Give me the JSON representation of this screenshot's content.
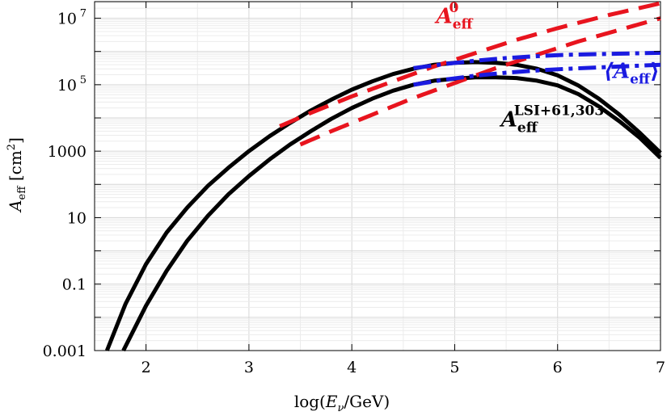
{
  "chart_data": {
    "type": "line",
    "xlabel": {
      "main": "log(",
      "var": "E",
      "sub": "ν",
      "rest": "/GeV)"
    },
    "ylabel": {
      "var": "A",
      "sub": "eff",
      "rest": "  [cm",
      "sup": "2",
      "close": "]"
    },
    "xlim": [
      1.5,
      7.0
    ],
    "ylim_log10": [
      -3,
      7.5
    ],
    "yscale": "log",
    "grid": true,
    "x_ticks": [
      {
        "value": 2,
        "label": "2"
      },
      {
        "value": 3,
        "label": "3"
      },
      {
        "value": 4,
        "label": "4"
      },
      {
        "value": 5,
        "label": "5"
      },
      {
        "value": 6,
        "label": "6"
      },
      {
        "value": 7,
        "label": "7"
      }
    ],
    "y_ticks": [
      {
        "log10": -3,
        "label": "0.001"
      },
      {
        "log10": -1,
        "label": "0.1"
      },
      {
        "log10": 1,
        "label": "10"
      },
      {
        "log10": 3,
        "label": "1000"
      },
      {
        "log10": 5,
        "label": "10",
        "sup": "5"
      },
      {
        "log10": 7,
        "label": "10",
        "sup": "7"
      }
    ],
    "series": [
      {
        "style": "dashed",
        "color": "#e8141e",
        "x": [
          3.3,
          3.6,
          4.0,
          4.4,
          4.8,
          5.2,
          5.6,
          6.0,
          6.5,
          7.0
        ],
        "y_log10": [
          3.75,
          4.15,
          4.65,
          5.1,
          5.55,
          5.95,
          6.35,
          6.7,
          7.1,
          7.45
        ]
      },
      {
        "style": "dashed",
        "color": "#e8141e",
        "x": [
          3.5,
          3.8,
          4.2,
          4.6,
          5.0,
          5.4,
          5.8,
          6.2,
          6.6,
          7.0
        ],
        "y_log10": [
          3.2,
          3.6,
          4.1,
          4.6,
          5.05,
          5.5,
          5.9,
          6.3,
          6.65,
          7.0
        ]
      },
      {
        "style": "dashdot",
        "color": "#1a1ae0",
        "x": [
          4.6,
          4.9,
          5.2,
          5.5,
          5.8,
          6.1,
          6.4,
          6.7,
          7.0
        ],
        "y_log10": [
          5.5,
          5.62,
          5.72,
          5.8,
          5.86,
          5.9,
          5.92,
          5.94,
          5.96
        ]
      },
      {
        "style": "dashdot",
        "color": "#1a1ae0",
        "x": [
          4.6,
          4.9,
          5.2,
          5.5,
          5.8,
          6.1,
          6.4,
          6.7,
          7.0
        ],
        "y_log10": [
          5.0,
          5.15,
          5.27,
          5.36,
          5.43,
          5.48,
          5.52,
          5.56,
          5.6
        ]
      },
      {
        "style": "solid",
        "color": "#000000",
        "x": [
          1.62,
          1.8,
          2.0,
          2.2,
          2.4,
          2.6,
          2.8,
          3.0,
          3.2,
          3.4,
          3.6,
          3.8,
          4.0,
          4.2,
          4.4,
          4.6,
          4.8,
          5.0,
          5.2,
          5.4,
          5.6,
          5.8,
          6.0,
          6.2,
          6.4,
          6.6,
          6.8,
          7.0
        ],
        "y_log10": [
          -3.0,
          -1.6,
          -0.4,
          0.55,
          1.3,
          1.95,
          2.5,
          3.0,
          3.45,
          3.85,
          4.22,
          4.55,
          4.85,
          5.1,
          5.32,
          5.48,
          5.6,
          5.66,
          5.68,
          5.66,
          5.6,
          5.48,
          5.28,
          4.98,
          4.58,
          4.1,
          3.55,
          2.95
        ]
      },
      {
        "style": "solid",
        "color": "#000000",
        "x": [
          1.78,
          2.0,
          2.2,
          2.4,
          2.6,
          2.8,
          3.0,
          3.2,
          3.4,
          3.6,
          3.8,
          4.0,
          4.2,
          4.4,
          4.6,
          4.8,
          5.0,
          5.2,
          5.4,
          5.6,
          5.8,
          6.0,
          6.2,
          6.4,
          6.6,
          6.8,
          7.0
        ],
        "y_log10": [
          -3.0,
          -1.65,
          -0.6,
          0.3,
          1.05,
          1.7,
          2.25,
          2.75,
          3.2,
          3.6,
          3.97,
          4.3,
          4.58,
          4.82,
          5.0,
          5.12,
          5.18,
          5.22,
          5.22,
          5.2,
          5.12,
          4.98,
          4.72,
          4.35,
          3.9,
          3.4,
          2.8
        ]
      }
    ],
    "annotations": [
      {
        "label_main": "A",
        "label_sub": "eff",
        "label_sup": "0",
        "color": "#e8141e",
        "x": 4.82,
        "y_log10": 6.85
      },
      {
        "label_main": "⟨A",
        "label_sub": "eff",
        "label_close": "⟩",
        "color": "#1a1ae0",
        "x": 6.45,
        "y_log10": 5.2
      },
      {
        "label_main": "A",
        "label_sub": "eff",
        "label_sup": "LSI+61,303",
        "color": "#000000",
        "x": 5.45,
        "y_log10": 3.75
      }
    ]
  }
}
